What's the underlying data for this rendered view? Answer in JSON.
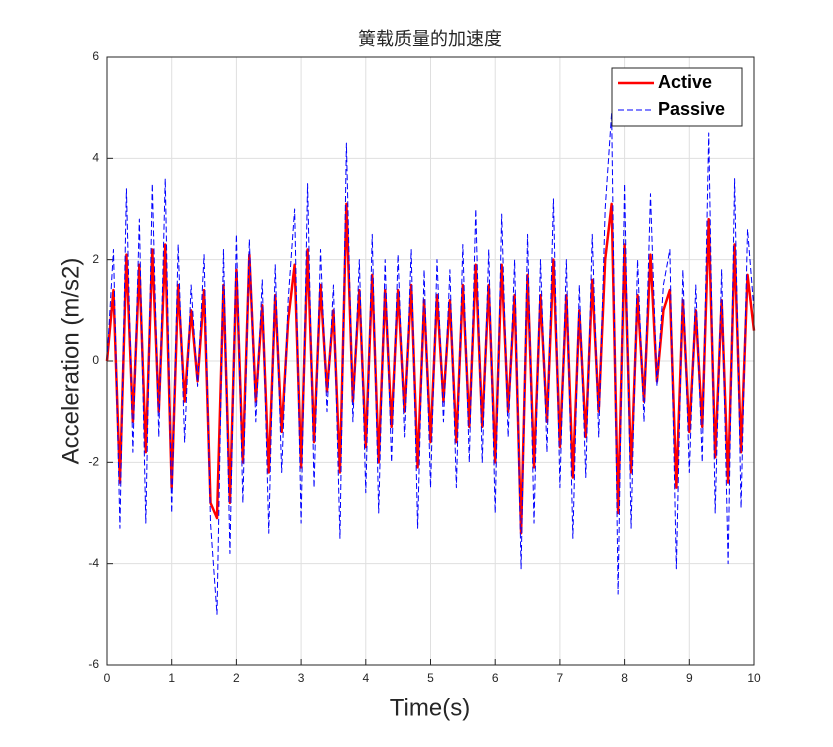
{
  "chart_data": {
    "type": "line",
    "title": "簧载质量的加速度",
    "xlabel": "Time(s)",
    "ylabel": "Acceleration (m/s2)",
    "x": [
      0,
      0.1,
      0.2,
      0.3,
      0.4,
      0.5,
      0.6,
      0.7,
      0.8,
      0.9,
      1,
      1.1,
      1.2,
      1.3,
      1.4,
      1.5,
      1.6,
      1.7,
      1.8,
      1.9,
      2,
      2.1,
      2.2,
      2.3,
      2.4,
      2.5,
      2.6,
      2.7,
      2.8,
      2.9,
      3,
      3.1,
      3.2,
      3.3,
      3.4,
      3.5,
      3.6,
      3.7,
      3.8,
      3.9,
      4,
      4.1,
      4.2,
      4.3,
      4.4,
      4.5,
      4.6,
      4.7,
      4.8,
      4.9,
      5,
      5.1,
      5.2,
      5.3,
      5.4,
      5.5,
      5.6,
      5.7,
      5.8,
      5.9,
      6,
      6.1,
      6.2,
      6.3,
      6.4,
      6.5,
      6.6,
      6.7,
      6.8,
      6.9,
      7,
      7.1,
      7.2,
      7.3,
      7.4,
      7.5,
      7.6,
      7.7,
      7.8,
      7.9,
      8,
      8.1,
      8.2,
      8.3,
      8.4,
      8.5,
      8.6,
      8.7,
      8.8,
      8.9,
      9,
      9.1,
      9.2,
      9.3,
      9.4,
      9.5,
      9.6,
      9.7,
      9.8,
      9.9,
      10
    ],
    "series": [
      {
        "name": "Active",
        "color": "#ff0000",
        "dash": false,
        "width": 2.5,
        "values": [
          0,
          1.4,
          -2.4,
          2.1,
          -1.2,
          1.9,
          -1.8,
          2.2,
          -1.0,
          2.3,
          -2.5,
          1.5,
          -0.8,
          1.0,
          -0.4,
          1.4,
          -2.8,
          -3.1,
          1.5,
          -2.8,
          1.8,
          -2.0,
          2.1,
          -0.8,
          1.1,
          -2.2,
          1.3,
          -1.4,
          0.8,
          1.9,
          -2.1,
          2.2,
          -1.6,
          1.5,
          -0.6,
          1.0,
          -2.2,
          3.1,
          -0.8,
          1.4,
          -1.7,
          1.7,
          -2.0,
          1.4,
          -1.3,
          1.4,
          -1.0,
          1.5,
          -2.1,
          1.2,
          -1.6,
          1.3,
          -0.8,
          1.2,
          -1.6,
          1.5,
          -1.3,
          1.9,
          -1.3,
          1.5,
          -2.0,
          1.9,
          -1.0,
          1.3,
          -3.4,
          1.7,
          -2.1,
          1.3,
          -1.2,
          2.0,
          -1.7,
          1.3,
          -2.3,
          1.0,
          -1.5,
          1.6,
          -1.0,
          2.0,
          3.1,
          -3.0,
          2.3,
          -2.2,
          1.3,
          -0.8,
          2.1,
          -0.4,
          1.0,
          1.4,
          -2.5,
          1.2,
          -1.4,
          1.0,
          -1.3,
          2.8,
          -1.9,
          1.2,
          -2.4,
          2.3,
          -1.8,
          1.7,
          0.6
        ]
      },
      {
        "name": "Passive",
        "color": "#0000ff",
        "dash": true,
        "width": 1,
        "values": [
          0,
          2.2,
          -3.3,
          3.4,
          -1.8,
          2.8,
          -3.2,
          3.5,
          -1.5,
          3.6,
          -3.0,
          2.3,
          -1.6,
          1.5,
          -0.5,
          2.1,
          -3.2,
          -5.0,
          2.2,
          -3.8,
          2.5,
          -2.8,
          2.4,
          -1.2,
          1.6,
          -3.4,
          1.9,
          -2.2,
          1.2,
          3.0,
          -3.2,
          3.5,
          -2.5,
          2.2,
          -1.0,
          1.5,
          -3.5,
          4.3,
          -1.2,
          2.0,
          -2.6,
          2.5,
          -3.0,
          2.0,
          -2.0,
          2.1,
          -1.5,
          2.2,
          -3.3,
          1.8,
          -2.5,
          2.0,
          -1.2,
          1.8,
          -2.5,
          2.3,
          -2.0,
          3.0,
          -2.0,
          2.2,
          -3.0,
          2.9,
          -1.5,
          2.0,
          -4.1,
          2.5,
          -3.2,
          2.0,
          -1.8,
          3.2,
          -2.5,
          2.0,
          -3.5,
          1.5,
          -2.3,
          2.5,
          -1.5,
          3.0,
          4.9,
          -4.6,
          3.5,
          -3.3,
          2.0,
          -1.2,
          3.3,
          -0.5,
          1.5,
          2.2,
          -4.1,
          1.8,
          -2.2,
          1.5,
          -2.0,
          4.5,
          -3.0,
          1.8,
          -4.0,
          3.6,
          -2.9,
          2.6,
          1.0
        ]
      }
    ],
    "xlim": [
      0,
      10
    ],
    "xticks": [
      0,
      1,
      2,
      3,
      4,
      5,
      6,
      7,
      8,
      9,
      10
    ],
    "ylim": [
      -6,
      6
    ],
    "yticks": [
      -6,
      -4,
      -2,
      0,
      2,
      4,
      6
    ],
    "grid": true,
    "legend": "upper right"
  }
}
